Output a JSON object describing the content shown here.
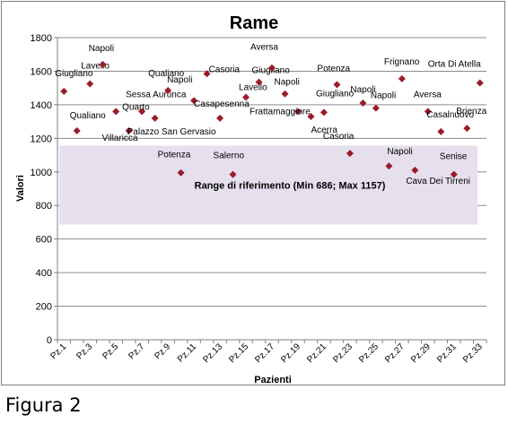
{
  "figure_caption": "Figura 2",
  "chart_data": {
    "type": "scatter",
    "title": "Rame",
    "xlabel": "Pazienti",
    "ylabel": "Valori",
    "ylim": [
      0,
      1800
    ],
    "yticks": [
      0,
      200,
      400,
      600,
      800,
      1000,
      1200,
      1400,
      1600,
      1800
    ],
    "categories": [
      "Pz.1",
      "Pz.2",
      "Pz.3",
      "Pz.4",
      "Pz.5",
      "Pz.6",
      "Pz.7",
      "Pz.8",
      "Pz.9",
      "Pz.10",
      "Pz.11",
      "Pz.12",
      "Pz.13",
      "Pz.14",
      "Pz.15",
      "Pz.16",
      "Pz.17",
      "Pz.18",
      "Pz.19",
      "Pz.20",
      "Pz.21",
      "Pz.22",
      "Pz.23",
      "Pz.24",
      "Pz.25",
      "Pz.26",
      "Pz.27",
      "Pz.28",
      "Pz.29",
      "Pz.30",
      "Pz.31",
      "Pz.32",
      "Pz.33"
    ],
    "tick_labels": [
      "Pz.1",
      "Pz.3",
      "Pz.5",
      "Pz.7",
      "Pz.9",
      "Pz.11",
      "Pz.13",
      "Pz.15",
      "Pz.17",
      "Pz.19",
      "Pz.21",
      "Pz.23",
      "Pz.25",
      "Pz.27",
      "Pz.29",
      "Pz.31",
      "Pz.33"
    ],
    "grid": "horizontal",
    "marker_color": "#9b1b2b",
    "band_color": "#e6e0ee",
    "reference_range": {
      "min": 686,
      "max": 1157,
      "label": "Range di riferimento  (Min 686; Max 1157)"
    },
    "points": [
      {
        "x": "Pz.1",
        "y": 1480,
        "label": "Giugliano"
      },
      {
        "x": "Pz.2",
        "y": 1245,
        "label": "Qualiano"
      },
      {
        "x": "Pz.3",
        "y": 1525,
        "label": "Lavello"
      },
      {
        "x": "Pz.4",
        "y": 1640,
        "label": "Napoli"
      },
      {
        "x": "Pz.5",
        "y": 1360,
        "label": "Quarto"
      },
      {
        "x": "Pz.6",
        "y": 1245,
        "label": "Villaricca"
      },
      {
        "x": "Pz.7",
        "y": 1360,
        "label": "Sessa Aurunca"
      },
      {
        "x": "Pz.8",
        "y": 1320,
        "label": "Palazzo San Gervasio"
      },
      {
        "x": "Pz.9",
        "y": 1485,
        "label": "Qualiano"
      },
      {
        "x": "Pz.10",
        "y": 995,
        "label": "Potenza"
      },
      {
        "x": "Pz.11",
        "y": 1425,
        "label": "Napoli"
      },
      {
        "x": "Pz.12",
        "y": 1585,
        "label": "Casoria"
      },
      {
        "x": "Pz.13",
        "y": 1320,
        "label": "Casapesenna"
      },
      {
        "x": "Pz.14",
        "y": 985,
        "label": "Salerno"
      },
      {
        "x": "Pz.15",
        "y": 1445,
        "label": "Lavello"
      },
      {
        "x": "Pz.16",
        "y": 1535,
        "label": "Giugliano"
      },
      {
        "x": "Pz.17",
        "y": 1620,
        "label": "Aversa"
      },
      {
        "x": "Pz.18",
        "y": 1465,
        "label": "Napoli"
      },
      {
        "x": "Pz.19",
        "y": 1360,
        "label": "Frattamaggiore"
      },
      {
        "x": "Pz.20",
        "y": 1330,
        "label": "Acerra"
      },
      {
        "x": "Pz.21",
        "y": 1355,
        "label": "Giugliano"
      },
      {
        "x": "Pz.22",
        "y": 1520,
        "label": "Potenza"
      },
      {
        "x": "Pz.23",
        "y": 1110,
        "label": "Casoria"
      },
      {
        "x": "Pz.24",
        "y": 1410,
        "label": "Napoli"
      },
      {
        "x": "Pz.25",
        "y": 1380,
        "label": "Napoli"
      },
      {
        "x": "Pz.26",
        "y": 1035,
        "label": "Napoli"
      },
      {
        "x": "Pz.27",
        "y": 1555,
        "label": "Frignano"
      },
      {
        "x": "Pz.28",
        "y": 1010,
        "label": "Cava Dei Tirreni"
      },
      {
        "x": "Pz.29",
        "y": 1360,
        "label": "Aversa"
      },
      {
        "x": "Pz.30",
        "y": 1240,
        "label": "Casalnuovo"
      },
      {
        "x": "Pz.31",
        "y": 985,
        "label": "Senise"
      },
      {
        "x": "Pz.32",
        "y": 1260,
        "label": "Brienza"
      },
      {
        "x": "Pz.33",
        "y": 1530,
        "label": "Orta Di Atella"
      }
    ]
  }
}
